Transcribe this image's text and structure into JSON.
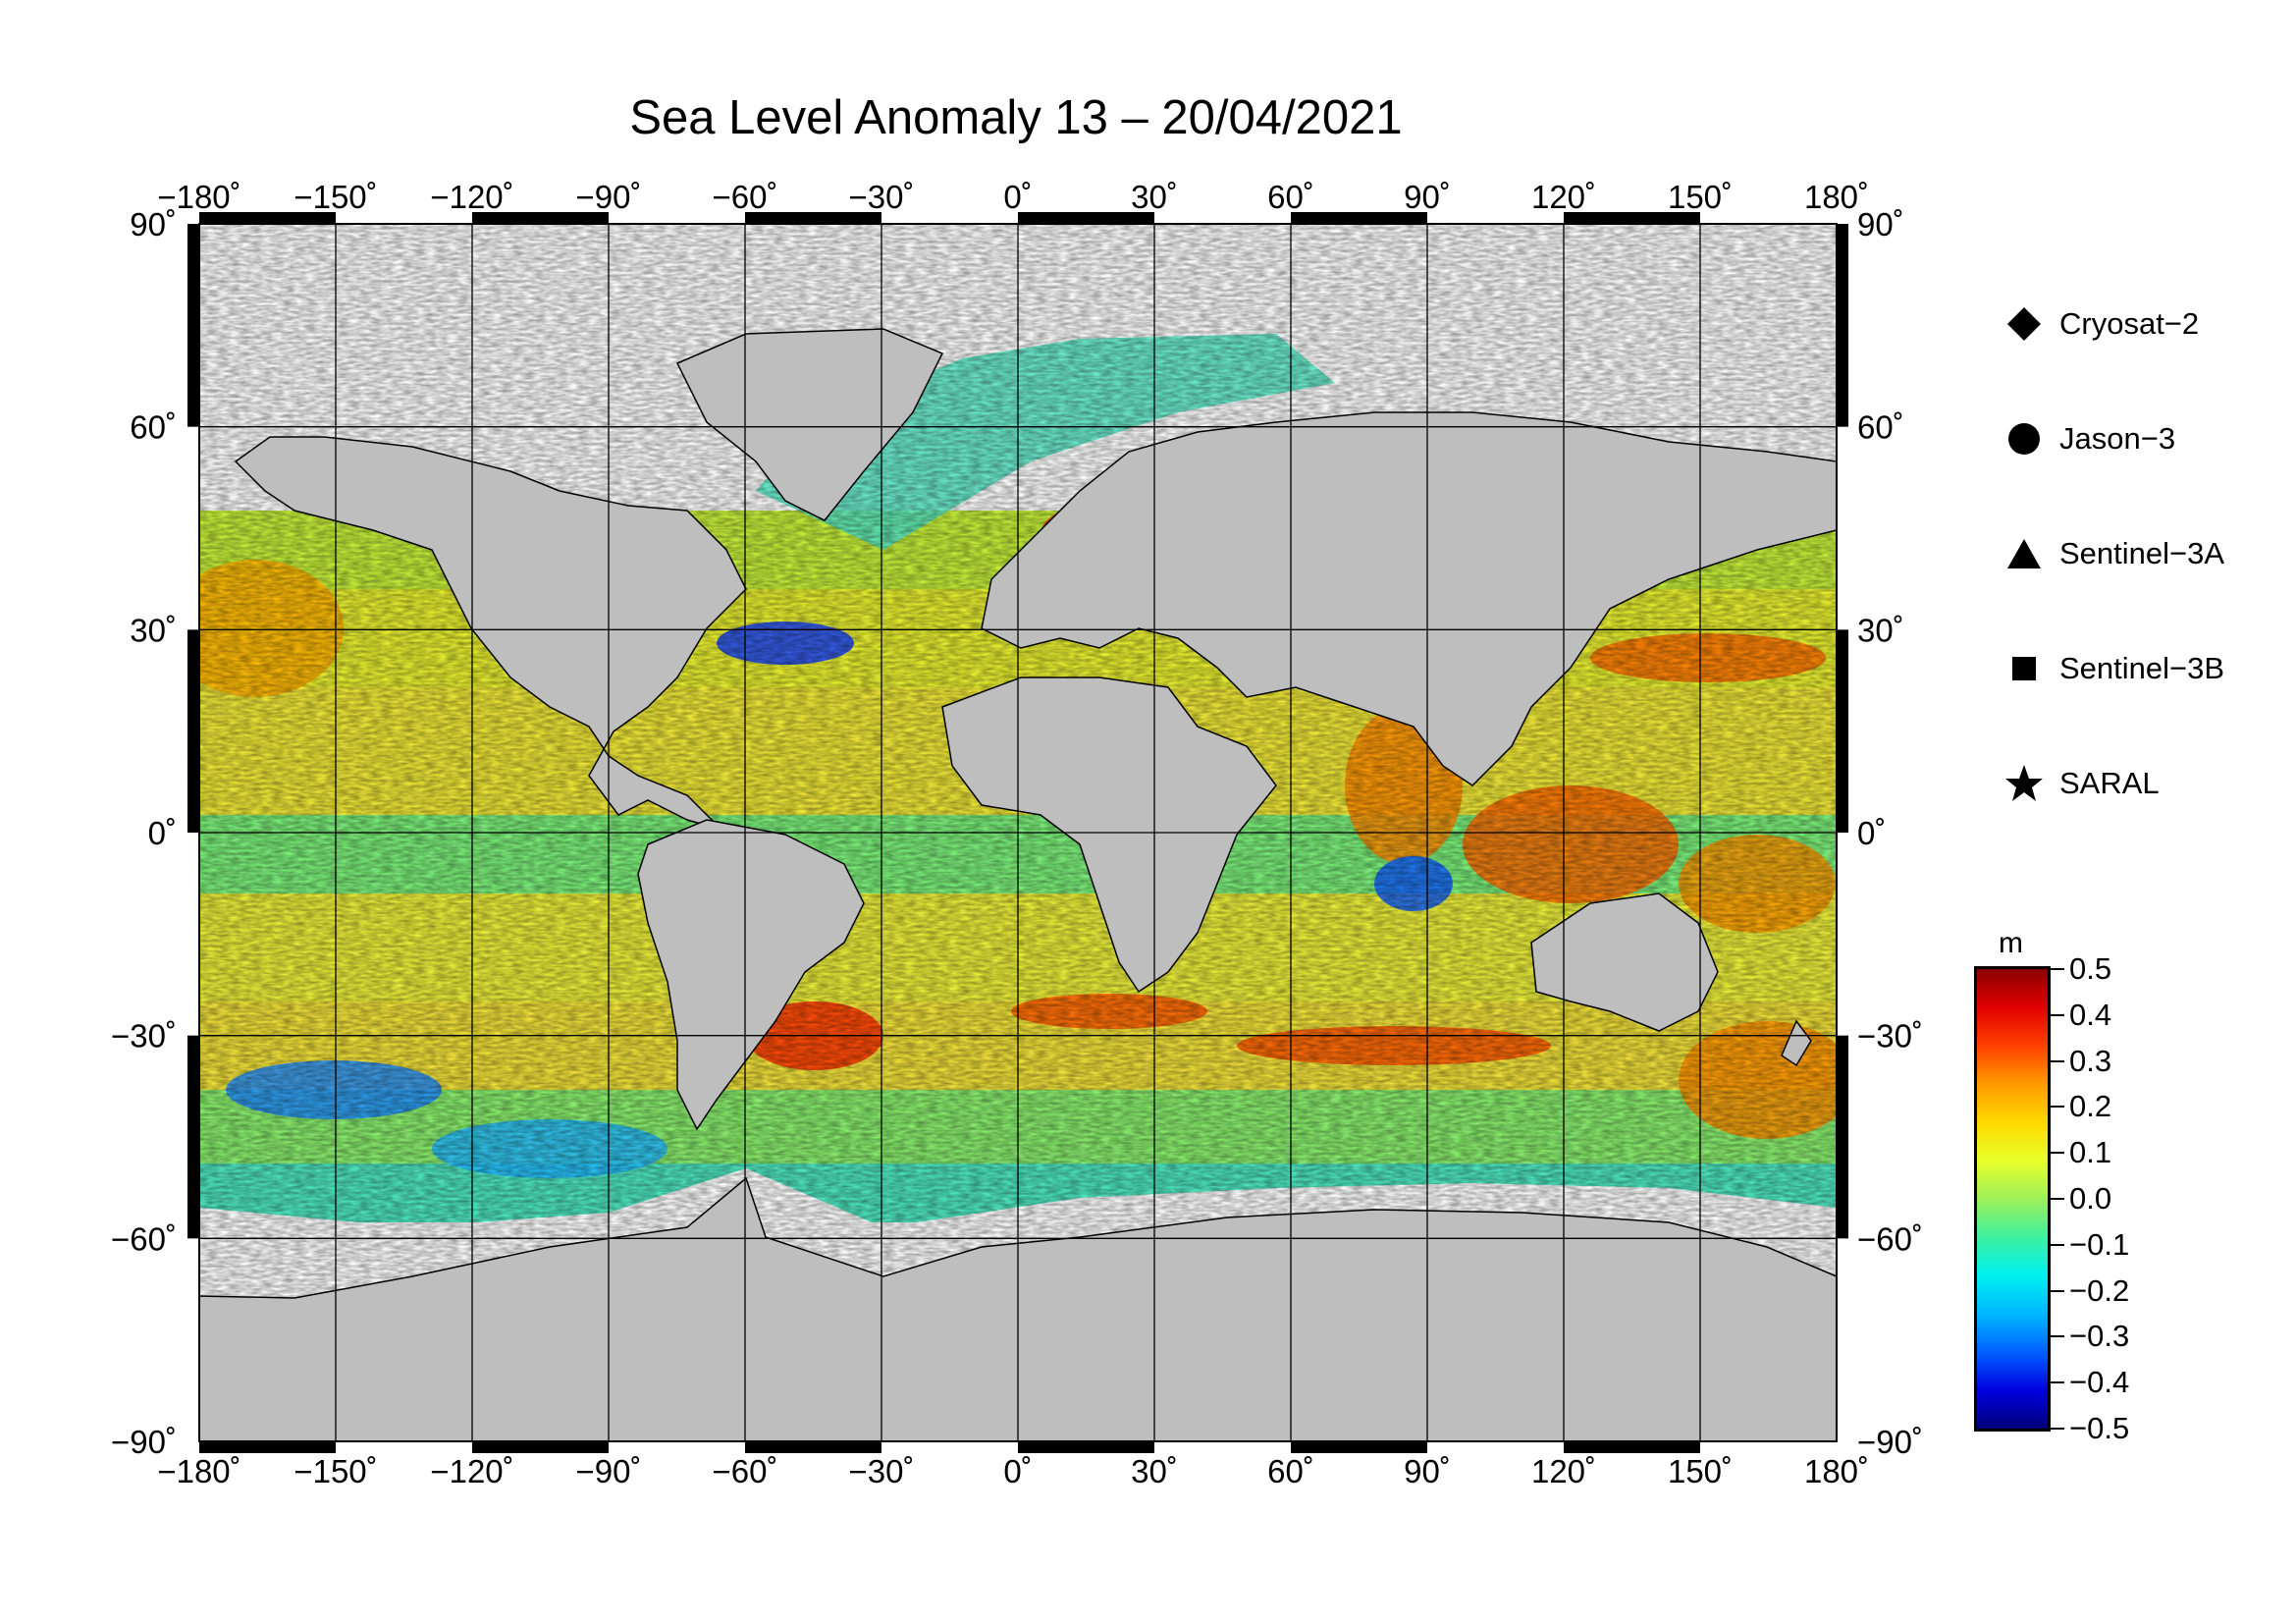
{
  "title": "Sea Level Anomaly 13 – 20/04/2021",
  "chart_data": {
    "type": "heatmap",
    "title": "Sea Level Anomaly 13 – 20/04/2021",
    "projection": "equirectangular",
    "xlim": [
      -180,
      180
    ],
    "ylim": [
      -90,
      90
    ],
    "lon_ticks": [
      "−180˚",
      "−150˚",
      "−120˚",
      "−90˚",
      "−60˚",
      "−30˚",
      "0˚",
      "30˚",
      "60˚",
      "90˚",
      "120˚",
      "150˚",
      "180˚"
    ],
    "lat_ticks": [
      "90˚",
      "60˚",
      "30˚",
      "0˚",
      "−30˚",
      "−60˚",
      "−90˚"
    ],
    "grid": true,
    "land_color": "#bebebe",
    "ice_color": "#ffffff"
  },
  "legend": [
    {
      "symbol": "diamond",
      "label": "Cryosat−2"
    },
    {
      "symbol": "circle",
      "label": "Jason−3"
    },
    {
      "symbol": "triangle",
      "label": "Sentinel−3A"
    },
    {
      "symbol": "square",
      "label": "Sentinel−3B"
    },
    {
      "symbol": "star",
      "label": "SARAL"
    }
  ],
  "colorbar": {
    "unit": "m",
    "range": [
      -0.5,
      0.5
    ],
    "labels": [
      "0.5",
      "0.4",
      "0.3",
      "0.2",
      "0.1",
      "0.0",
      "−0.1",
      "−0.2",
      "−0.3",
      "−0.4",
      "−0.5"
    ],
    "colors": [
      "#8b0000",
      "#e00000",
      "#ff4000",
      "#ff9a00",
      "#ffd800",
      "#e8ff2a",
      "#9ef05a",
      "#3ef0a0",
      "#00f0f0",
      "#00b8ff",
      "#0060ff",
      "#0000e0",
      "#00007a"
    ]
  }
}
